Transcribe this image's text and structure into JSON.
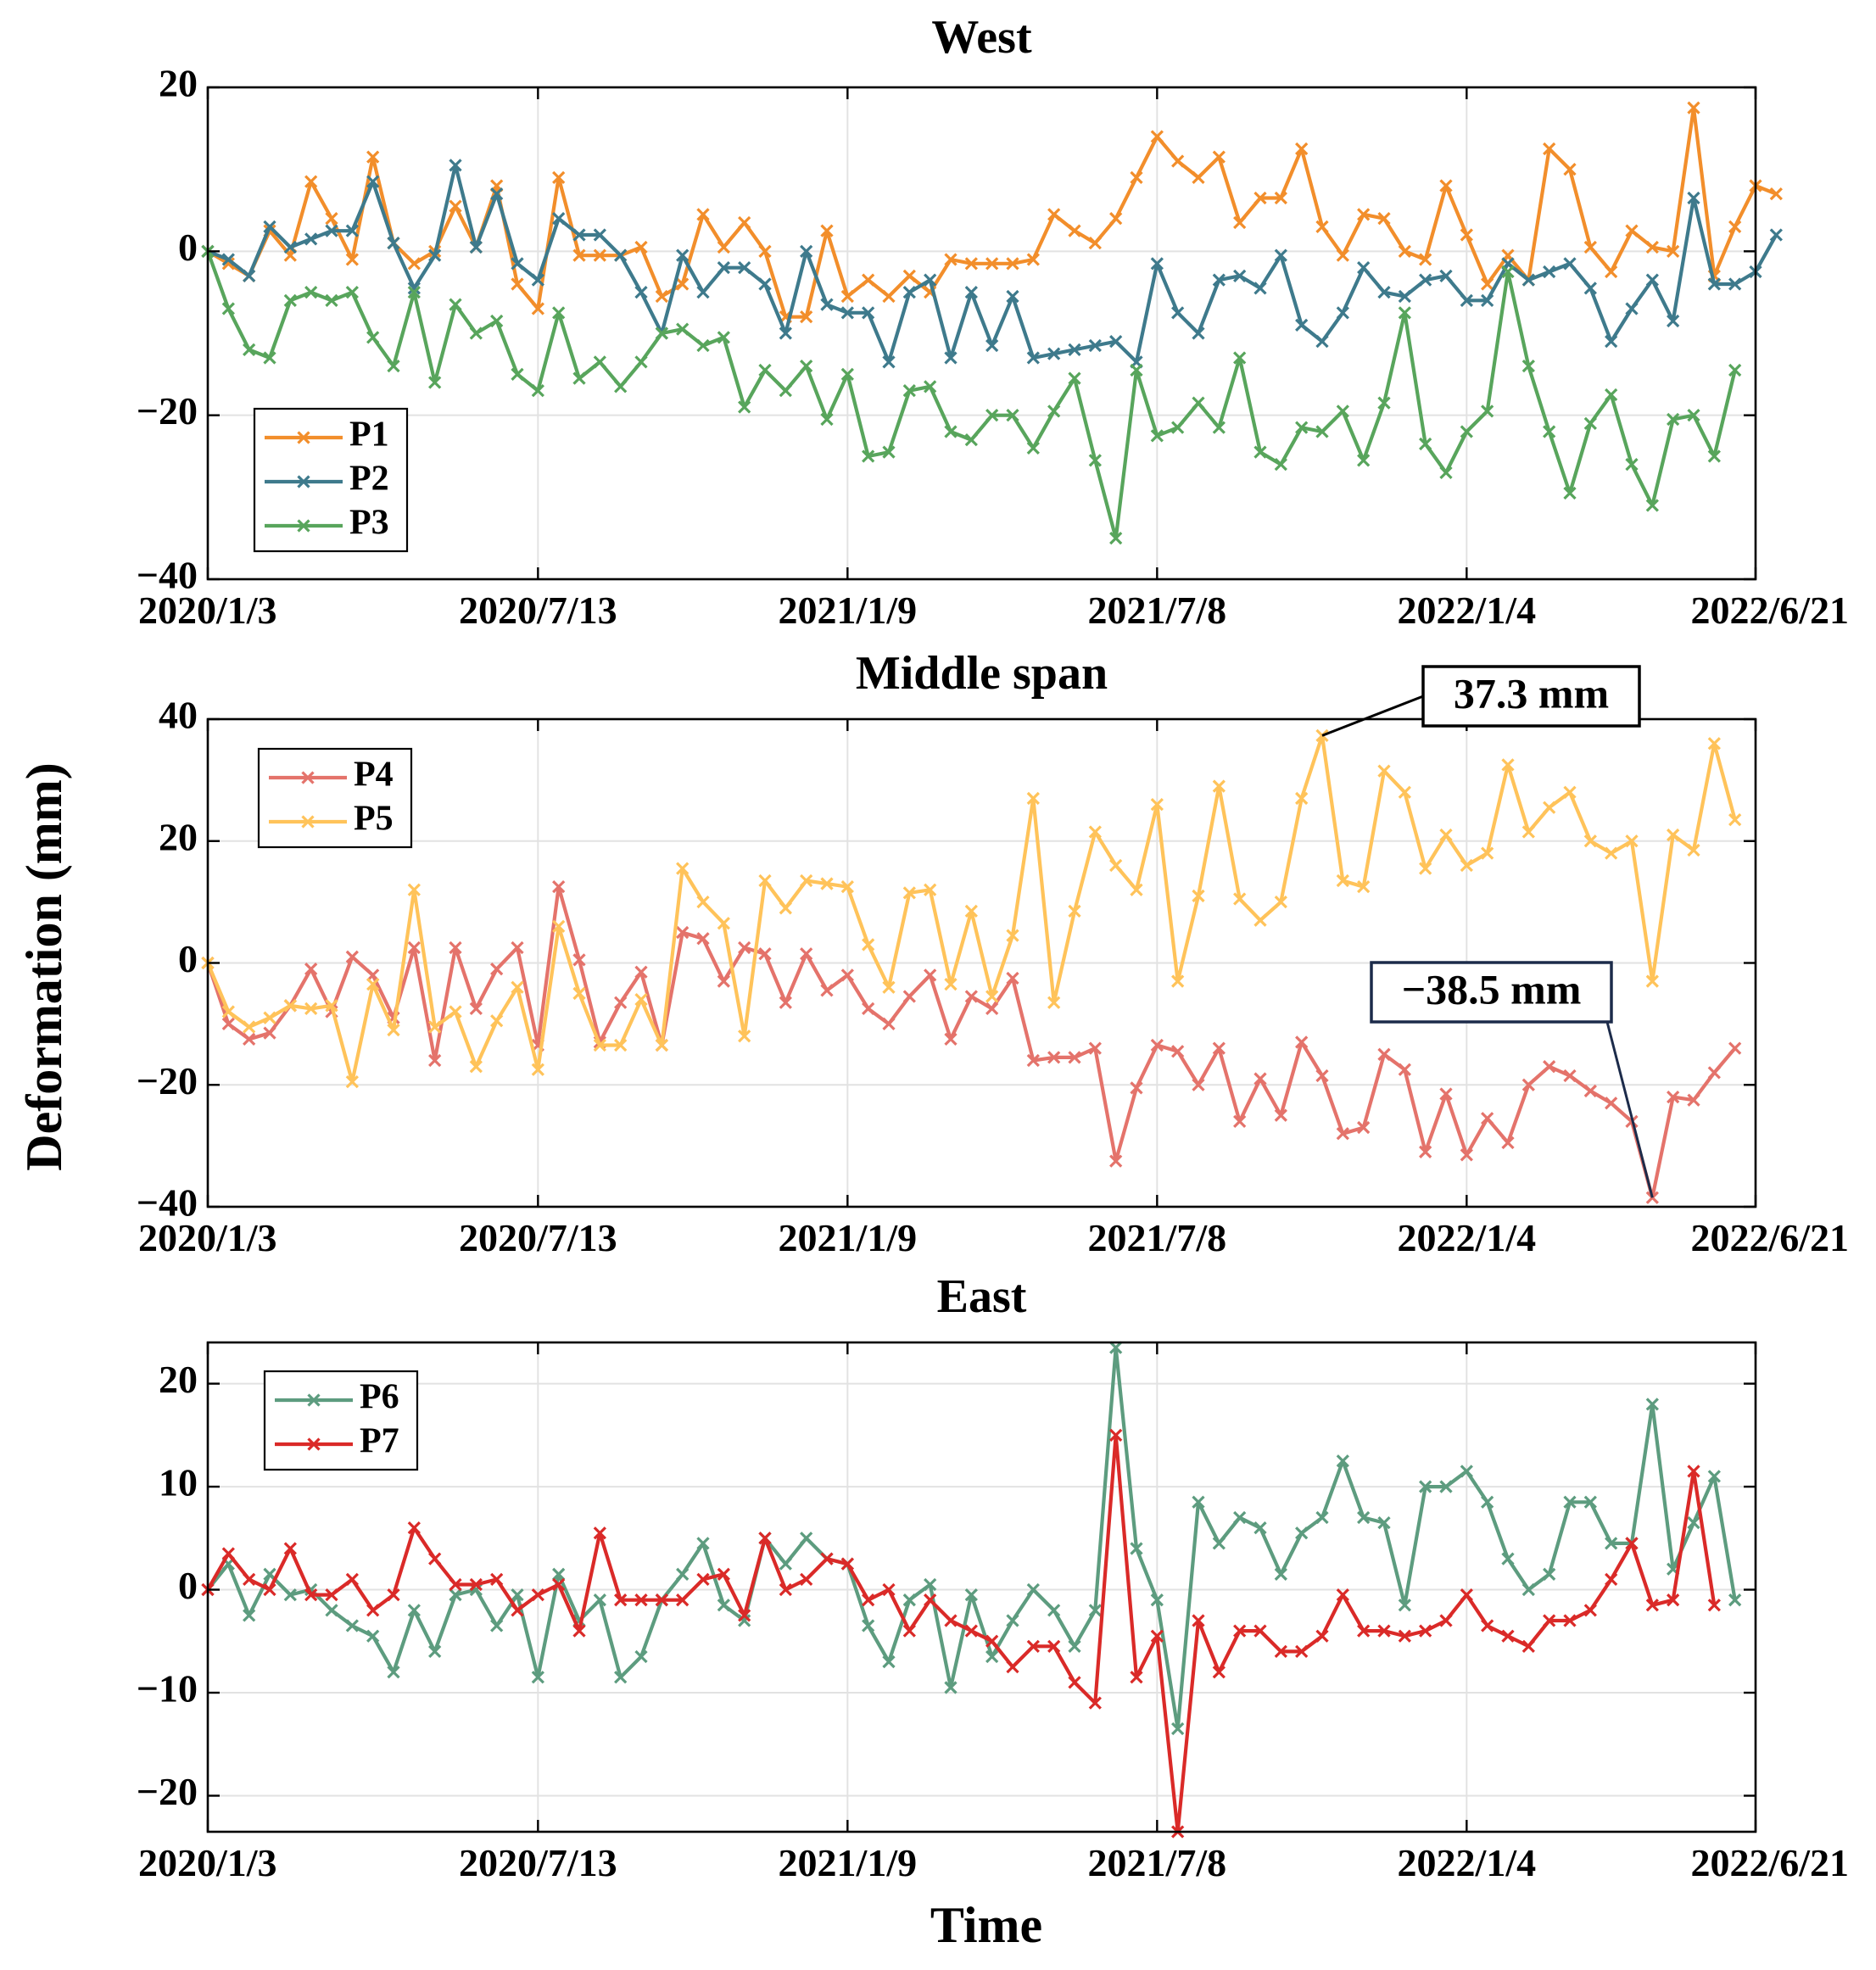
{
  "chart_data": {
    "type": "line",
    "ylabel": "Deformation (mm)",
    "xlabel": "Time",
    "x_range": [
      "2020/1/3",
      "2022/6/21"
    ],
    "x_tick_labels": [
      "2020/1/3",
      "2020/7/13",
      "2021/1/9",
      "2021/7/8",
      "2022/1/4",
      "2022/6/21"
    ],
    "x_tick_positions": [
      0,
      192,
      372,
      552,
      732,
      900
    ],
    "sample_interval_days": 12,
    "grid": true,
    "panels": [
      {
        "title": "West",
        "ylim": [
          -40,
          20
        ],
        "yticks": [
          20,
          0,
          -20,
          -40
        ],
        "ytick_labels": [
          "20",
          "0",
          "−20",
          "−40"
        ],
        "legend_position": "bottom-left",
        "series": [
          {
            "name": "P1",
            "color": "#F28E2B",
            "values": [
              0,
              -1.5,
              -3,
              2.5,
              -0.5,
              8.5,
              4,
              -1,
              11.5,
              1,
              -1.5,
              0,
              5.5,
              0.5,
              8,
              -4,
              -7,
              9,
              -0.5,
              -0.5,
              -0.5,
              0.5,
              -5.5,
              -4,
              4.5,
              0.5,
              3.5,
              0,
              -8,
              -8,
              2.5,
              -5.5,
              -3.5,
              -5.5,
              -3,
              -5,
              -1,
              -1.5,
              -1.5,
              -1.5,
              -1,
              4.5,
              2.5,
              1,
              4,
              9,
              14,
              11,
              9,
              11.5,
              3.5,
              6.5,
              6.5,
              12.5,
              3,
              -0.5,
              4.5,
              4,
              0,
              -1,
              8,
              2,
              -4,
              -0.5,
              -3.5,
              12.5,
              10,
              0.5,
              -2.5,
              2.5,
              0.5,
              0,
              17.5,
              -3,
              3,
              8,
              7
            ]
          },
          {
            "name": "P2",
            "color": "#3E7A8C",
            "values": [
              0,
              -1,
              -3,
              3,
              0.5,
              1.5,
              2.5,
              2.5,
              8.5,
              1,
              -4.5,
              -0.5,
              10.5,
              0.5,
              7,
              -1.5,
              -3.5,
              4,
              2,
              2,
              -0.5,
              -5,
              -10,
              -0.5,
              -5,
              -2,
              -2,
              -4,
              -10,
              0,
              -6.5,
              -7.5,
              -7.5,
              -13.5,
              -5,
              -3.5,
              -13,
              -5,
              -11.5,
              -5.5,
              -13,
              -12.5,
              -12,
              -11.5,
              -11,
              -13.5,
              -1.5,
              -7.5,
              -10,
              -3.5,
              -3,
              -4.5,
              -0.5,
              -9,
              -11,
              -7.5,
              -2,
              -5,
              -5.5,
              -3.5,
              -3,
              -6,
              -6,
              -1.5,
              -3.5,
              -2.5,
              -1.5,
              -4.5,
              -11,
              -7,
              -3.5,
              -8.5,
              6.5,
              -4,
              -4,
              -2.5,
              2
            ]
          },
          {
            "name": "P3",
            "color": "#58A55C",
            "values": [
              0,
              -7,
              -12,
              -13,
              -6,
              -5,
              -6,
              -5,
              -10.5,
              -14,
              -5,
              -16,
              -6.5,
              -10,
              -8.5,
              -15,
              -17,
              -7.5,
              -15.5,
              -13.5,
              -16.5,
              -13.5,
              -10,
              -9.5,
              -11.5,
              -10.5,
              -19,
              -14.5,
              -17,
              -14,
              -20.5,
              -15,
              -25,
              -24.5,
              -17,
              -16.5,
              -22,
              -23,
              -20,
              -20,
              -24,
              -19.5,
              -15.5,
              -25.5,
              -35,
              -14.5,
              -22.5,
              -21.5,
              -18.5,
              -21.5,
              -13,
              -24.5,
              -26,
              -21.5,
              -22,
              -19.5,
              -25.5,
              -18.5,
              -7.5,
              -23.5,
              -27,
              -22,
              -19.5,
              -2.5,
              -14,
              -22,
              -29.5,
              -21,
              -17.5,
              -26,
              -31,
              -20.5,
              -20,
              -25,
              -14.5
            ]
          }
        ]
      },
      {
        "title": "Middle span",
        "ylim": [
          -40,
          40
        ],
        "yticks": [
          40,
          20,
          0,
          -20,
          -40
        ],
        "ytick_labels": [
          "40",
          "20",
          "0",
          "−20",
          "−40"
        ],
        "legend_position": "top-left",
        "series": [
          {
            "name": "P4",
            "color": "#E4736B",
            "values": [
              0,
              -10,
              -12.5,
              -11.5,
              -7,
              -1,
              -8,
              1,
              -2,
              -9,
              2.5,
              -16,
              2.5,
              -7.5,
              -1,
              2.5,
              -13.5,
              12.5,
              0.5,
              -13,
              -6.5,
              -1.5,
              -13.5,
              5,
              4,
              -3,
              2.5,
              1.5,
              -6.5,
              1.5,
              -4.5,
              -2,
              -7.5,
              -10,
              -5.5,
              -2,
              -12.5,
              -5.5,
              -7.5,
              -2.5,
              -16,
              -15.5,
              -15.5,
              -14,
              -32.5,
              -20.5,
              -13.5,
              -14.5,
              -20,
              -14,
              -26,
              -19,
              -25,
              -13,
              -18.5,
              -28,
              -27,
              -15,
              -17.5,
              -31,
              -21.5,
              -31.5,
              -25.5,
              -29.5,
              -20,
              -17,
              -18.5,
              -21,
              -23,
              -26,
              -38.5,
              -22,
              -22.5,
              -18,
              -14
            ]
          },
          {
            "name": "P5",
            "color": "#FFC35A",
            "values": [
              0,
              -8,
              -10.5,
              -9,
              -7,
              -7.5,
              -7,
              -19.5,
              -3.5,
              -11,
              12,
              -10.5,
              -8,
              -17,
              -9.5,
              -4,
              -17.5,
              6,
              -5,
              -13.5,
              -13.5,
              -6,
              -13.5,
              15.5,
              10,
              6.5,
              -12,
              13.5,
              9,
              13.5,
              13,
              12.5,
              3,
              -4,
              11.5,
              12,
              -3.5,
              8.5,
              -5.5,
              4.5,
              27,
              -6.5,
              8.5,
              21.5,
              16,
              12,
              26,
              -3,
              11,
              29,
              10.5,
              7,
              10,
              27,
              37.3,
              13.5,
              12.5,
              31.5,
              28,
              15.5,
              21,
              16,
              18,
              32.5,
              21.5,
              25.5,
              28,
              20,
              18,
              20,
              -3,
              21,
              18.5,
              36,
              23.5
            ]
          }
        ],
        "annotations": [
          {
            "text": "37.3 mm",
            "series": "P5",
            "point_index": 54,
            "value": 37.3,
            "border_color": "#000000"
          },
          {
            "text": "−38.5 mm",
            "series": "P4",
            "point_index": 70,
            "value": -38.5,
            "border_color": "#1C2B4A"
          }
        ]
      },
      {
        "title": "East",
        "ylim": [
          -23.5,
          24
        ],
        "yticks": [
          20,
          10,
          0,
          -10,
          -20
        ],
        "ytick_labels": [
          "20",
          "10",
          "0",
          "−10",
          "−20"
        ],
        "legend_position": "top-left",
        "series": [
          {
            "name": "P6",
            "color": "#5D9C7F",
            "values": [
              0,
              2.5,
              -2.5,
              1.5,
              -0.5,
              0,
              -2,
              -3.5,
              -4.5,
              -8,
              -2,
              -6,
              -0.5,
              0,
              -3.5,
              -0.5,
              -8.5,
              1.5,
              -3,
              -1,
              -8.5,
              -6.5,
              -1,
              1.5,
              4.5,
              -1.5,
              -3,
              5,
              2.5,
              5,
              3,
              2.5,
              -3.5,
              -7,
              -1,
              0.5,
              -9.5,
              -0.5,
              -6.5,
              -3,
              0,
              -2,
              -5.5,
              -2,
              23.5,
              4,
              -1,
              -13.5,
              8.5,
              4.5,
              7,
              6,
              1.5,
              5.5,
              7,
              12.5,
              7,
              6.5,
              -1.5,
              10,
              10,
              11.5,
              8.5,
              3,
              0,
              1.5,
              8.5,
              8.5,
              4.5,
              4.5,
              18,
              2,
              6.5,
              11,
              -1
            ]
          },
          {
            "name": "P7",
            "color": "#DA2A28",
            "values": [
              0,
              3.5,
              1,
              0,
              4,
              -0.5,
              -0.5,
              1,
              -2,
              -0.5,
              6,
              3,
              0.5,
              0.5,
              1,
              -2,
              -0.5,
              0.5,
              -4,
              5.5,
              -1,
              -1,
              -1,
              -1,
              1,
              1.5,
              -2.5,
              5,
              0,
              1,
              3,
              2.5,
              -1,
              0,
              -4,
              -1,
              -3,
              -4,
              -5,
              -7.5,
              -5.5,
              -5.5,
              -9,
              -11,
              15,
              -8.5,
              -4.5,
              -23.5,
              -3,
              -8,
              -4,
              -4,
              -6,
              -6,
              -4.5,
              -0.5,
              -4,
              -4,
              -4.5,
              -4,
              -3,
              -0.5,
              -3.5,
              -4.5,
              -5.5,
              -3,
              -3,
              -2,
              1,
              4.5,
              -1.5,
              -1,
              11.5,
              -1.5
            ]
          }
        ]
      }
    ]
  }
}
